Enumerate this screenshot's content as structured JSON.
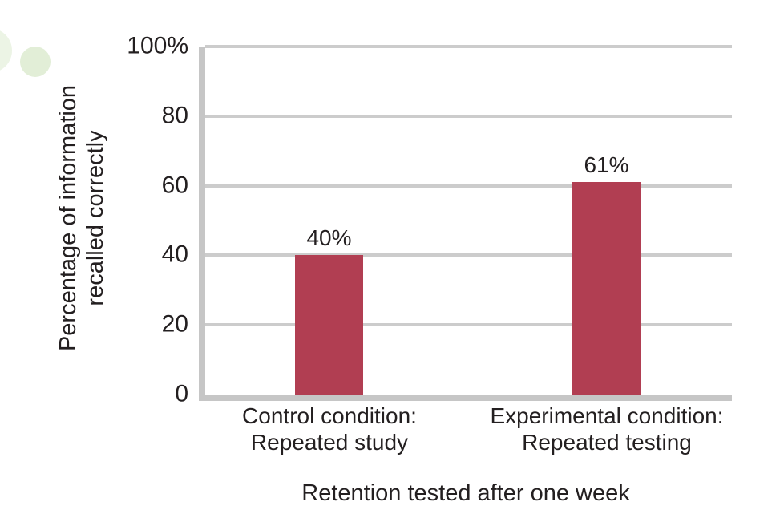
{
  "page": {
    "background_color": "#ffffff",
    "text_color": "#231f20"
  },
  "decorations": {
    "circle_a_color": "#e9f2e1",
    "circle_b_color": "#e2eed7"
  },
  "chart_data": {
    "type": "bar",
    "title": "",
    "categories": [
      {
        "line1": "Control condition:",
        "line2": "Repeated study"
      },
      {
        "line1": "Experimental condition:",
        "line2": "Repeated testing"
      }
    ],
    "values": [
      40,
      61
    ],
    "data_labels": [
      "40%",
      "61%"
    ],
    "xlabel": "Retention tested after one week",
    "ylabel_line1": "Percentage of information",
    "ylabel_line2": "recalled correctly",
    "ylim": [
      0,
      100
    ],
    "yticks": [
      {
        "value": 100,
        "label": "100%"
      },
      {
        "value": 80,
        "label": "80"
      },
      {
        "value": 60,
        "label": "60"
      },
      {
        "value": 40,
        "label": "40"
      },
      {
        "value": 20,
        "label": "20"
      },
      {
        "value": 0,
        "label": "0"
      }
    ],
    "grid": "horizontal",
    "legend_position": "none",
    "bar_color": "#b13e52",
    "axis_color": "#c6c6c6",
    "gridline_color": "#cccccc"
  }
}
